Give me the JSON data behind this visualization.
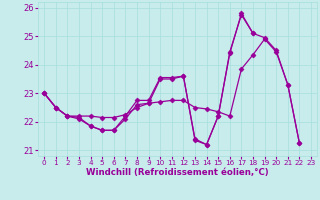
{
  "xlabel": "Windchill (Refroidissement éolien,°C)",
  "background_color": "#c8ecec",
  "line_color": "#990099",
  "xlim": [
    -0.5,
    23.5
  ],
  "ylim": [
    20.8,
    26.2
  ],
  "yticks": [
    21,
    22,
    23,
    24,
    25,
    26
  ],
  "xticks": [
    0,
    1,
    2,
    3,
    4,
    5,
    6,
    7,
    8,
    9,
    10,
    11,
    12,
    13,
    14,
    15,
    16,
    17,
    18,
    19,
    20,
    21,
    22,
    23
  ],
  "series1": [
    23.0,
    22.5,
    22.2,
    22.1,
    21.85,
    21.7,
    21.7,
    22.1,
    22.6,
    22.65,
    23.5,
    23.5,
    23.6,
    21.35,
    21.2,
    22.2,
    24.4,
    25.8,
    25.1,
    24.95,
    24.5,
    23.3,
    21.25,
    null
  ],
  "series2": [
    23.0,
    22.5,
    22.2,
    22.15,
    21.85,
    21.7,
    21.7,
    22.2,
    22.75,
    22.75,
    23.55,
    23.55,
    23.6,
    21.4,
    21.2,
    22.2,
    24.45,
    25.75,
    25.1,
    null,
    null,
    null,
    null,
    null
  ],
  "series3": [
    23.0,
    22.5,
    22.2,
    22.2,
    22.2,
    22.15,
    22.15,
    22.25,
    22.5,
    22.65,
    22.7,
    22.75,
    22.75,
    22.5,
    22.45,
    22.35,
    22.2,
    23.85,
    24.35,
    24.9,
    24.45,
    23.3,
    21.25,
    null
  ],
  "grid_color": "#a8dede",
  "font_color": "#990099",
  "marker": "D",
  "markersize": 2.5,
  "linewidth": 0.9
}
